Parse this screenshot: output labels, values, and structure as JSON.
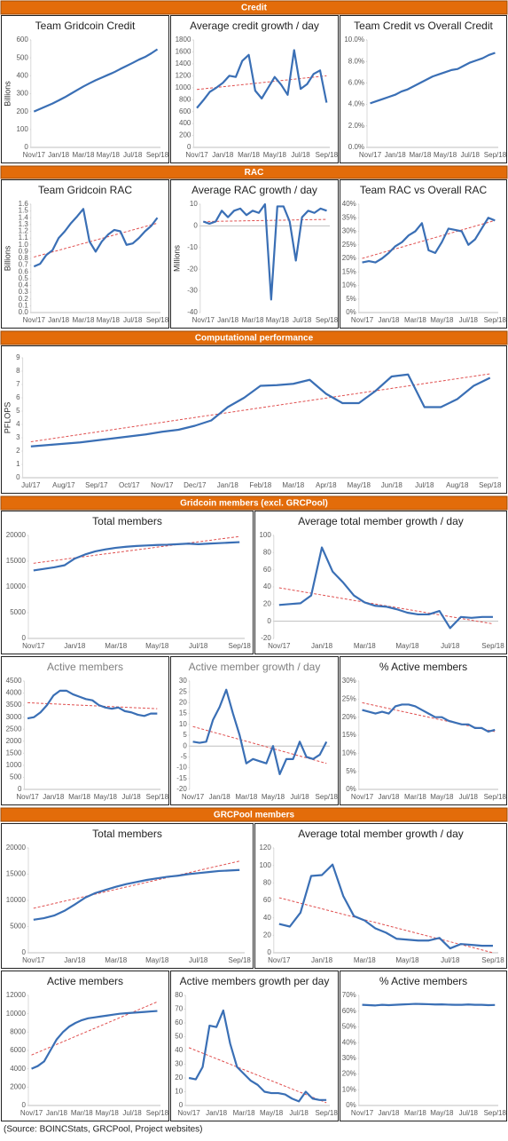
{
  "sections": [
    "Credit",
    "RAC",
    "Computational performance",
    "Gridcoin members (excl. GRCPool)",
    "GRCPool members"
  ],
  "source": "(Source: BOINCStats, GRCPool, Project websites)",
  "chart_data": [
    {
      "type": "line",
      "title": "Team Gridcoin Credit",
      "ylabel": "Billions",
      "color": "#3a6fb5",
      "categories": [
        "Nov/17",
        null,
        null,
        null,
        "Jan/18",
        null,
        null,
        null,
        "Mar/18",
        null,
        null,
        null,
        "May/18",
        null,
        null,
        null,
        "Jul/18",
        null,
        null,
        null,
        "Sep/18"
      ],
      "values": [
        200,
        215,
        230,
        245,
        262,
        280,
        300,
        320,
        340,
        358,
        375,
        390,
        405,
        420,
        438,
        455,
        472,
        490,
        505,
        525,
        548
      ],
      "ylim": [
        0,
        600
      ],
      "yticks": [
        0,
        100,
        200,
        300,
        400,
        500,
        600
      ]
    },
    {
      "type": "line",
      "title": "Average credit growth / day",
      "color": "#3a6fb5",
      "trend_color": "#e05050",
      "categories": [
        "Nov/17",
        null,
        null,
        null,
        "Jan/18",
        null,
        null,
        null,
        "Mar/18",
        null,
        null,
        null,
        "May/18",
        null,
        null,
        null,
        "Jul/18",
        null,
        null,
        null,
        "Sep/18"
      ],
      "values": [
        660,
        790,
        930,
        1000,
        1080,
        1200,
        1180,
        1450,
        1550,
        950,
        820,
        1000,
        1180,
        1050,
        880,
        1630,
        980,
        1060,
        1230,
        1290,
        750
      ],
      "trend": [
        970,
        1200
      ],
      "ylim": [
        0,
        1800
      ],
      "yticks": [
        0,
        200,
        400,
        600,
        800,
        1000,
        1200,
        1400,
        1600,
        1800
      ]
    },
    {
      "type": "line",
      "title": "Team Credit vs Overall Credit",
      "color": "#3a6fb5",
      "categories": [
        "Nov/17",
        null,
        null,
        null,
        "Jan/18",
        null,
        null,
        null,
        "Mar/18",
        null,
        null,
        null,
        "May/18",
        null,
        null,
        null,
        "Jul/18",
        null,
        null,
        null,
        "Sep/18"
      ],
      "values": [
        4.1,
        4.3,
        4.5,
        4.7,
        4.9,
        5.2,
        5.4,
        5.7,
        6.0,
        6.3,
        6.6,
        6.8,
        7.0,
        7.2,
        7.3,
        7.6,
        7.9,
        8.1,
        8.3,
        8.6,
        8.8
      ],
      "ylim": [
        0,
        10
      ],
      "yticks": [
        {
          "value": 0,
          "label": "0.0%"
        },
        {
          "value": 2,
          "label": "2.0%"
        },
        {
          "value": 4,
          "label": "4.0%"
        },
        {
          "value": 6,
          "label": "6.0%"
        },
        {
          "value": 8,
          "label": "8.0%"
        },
        {
          "value": 10,
          "label": "10.0%"
        }
      ]
    },
    {
      "type": "line",
      "title": "Team Gridcoin RAC",
      "ylabel": "Billions",
      "color": "#3a6fb5",
      "trend_color": "#e05050",
      "categories": [
        "Nov/17",
        null,
        null,
        null,
        "Jan/18",
        null,
        null,
        null,
        "Mar/18",
        null,
        null,
        null,
        "May/18",
        null,
        null,
        null,
        "Jul/18",
        null,
        null,
        null,
        "Sep/18"
      ],
      "values": [
        0.68,
        0.72,
        0.85,
        0.92,
        1.1,
        1.2,
        1.32,
        1.42,
        1.53,
        1.05,
        0.9,
        1.05,
        1.15,
        1.22,
        1.2,
        1.0,
        1.02,
        1.1,
        1.2,
        1.28,
        1.4
      ],
      "trend": [
        0.82,
        1.32
      ],
      "ylim": [
        0,
        1.6
      ],
      "yticks": [
        {
          "value": 0,
          "label": "0.0"
        },
        0.1,
        0.2,
        0.3,
        0.4,
        0.5,
        0.6,
        0.7,
        0.8,
        0.9,
        {
          "value": 1,
          "label": "1.0"
        },
        1.1,
        1.2,
        1.3,
        1.4,
        1.5,
        1.6
      ]
    },
    {
      "type": "line",
      "title": "Average RAC growth / day",
      "ylabel": "Millions",
      "color": "#3a6fb5",
      "trend_color": "#e05050",
      "categories": [
        "Nov/17",
        null,
        null,
        null,
        "Jan/18",
        null,
        null,
        null,
        "Mar/18",
        null,
        null,
        null,
        "May/18",
        null,
        null,
        null,
        "Jul/18",
        null,
        null,
        null,
        "Sep/18"
      ],
      "values": [
        2,
        1,
        2,
        7,
        4,
        7,
        8,
        5,
        7,
        6,
        10,
        -34,
        9,
        9,
        2,
        -16,
        4,
        7,
        6,
        8,
        7
      ],
      "trend": [
        2,
        3
      ],
      "ylim": [
        -40,
        10
      ],
      "yticks": [
        -40,
        -30,
        -20,
        -10,
        0,
        10
      ]
    },
    {
      "type": "line",
      "title": "Team RAC vs Overall RAC",
      "color": "#3a6fb5",
      "trend_color": "#e05050",
      "categories": [
        "Nov/17",
        null,
        null,
        null,
        "Jan/18",
        null,
        null,
        null,
        "Mar/18",
        null,
        null,
        null,
        "May/18",
        null,
        null,
        null,
        "Jul/18",
        null,
        null,
        null,
        "Sep/18"
      ],
      "values": [
        18.5,
        19,
        18.5,
        20,
        22,
        24.5,
        26,
        28.5,
        30,
        33,
        23,
        22,
        26,
        31,
        30.5,
        30,
        25,
        27,
        31,
        35,
        34
      ],
      "trend": [
        20,
        34
      ],
      "ylim": [
        0,
        40
      ],
      "yticks": [
        {
          "value": 0,
          "label": "0%"
        },
        {
          "value": 5,
          "label": "5%"
        },
        {
          "value": 10,
          "label": "10%"
        },
        {
          "value": 15,
          "label": "15%"
        },
        {
          "value": 20,
          "label": "20%"
        },
        {
          "value": 25,
          "label": "25%"
        },
        {
          "value": 30,
          "label": "30%"
        },
        {
          "value": 35,
          "label": "35%"
        },
        {
          "value": 40,
          "label": "40%"
        }
      ]
    },
    {
      "type": "line",
      "ylabel": "PFLOPS",
      "color": "#3a6fb5",
      "trend_color": "#e05050",
      "categories": [
        "Jul/17",
        null,
        "Aug/17",
        null,
        "Sep/17",
        null,
        "Oct/17",
        null,
        "Nov/17",
        null,
        "Dec/17",
        null,
        "Jan/18",
        null,
        "Feb/18",
        null,
        "Mar/18",
        null,
        "Apr/18",
        null,
        "May/18",
        null,
        "Jun/18",
        null,
        "Jul/18",
        null,
        "Aug/18",
        null,
        "Sep/18"
      ],
      "values": [
        2.35,
        2.45,
        2.55,
        2.65,
        2.8,
        2.95,
        3.1,
        3.25,
        3.45,
        3.6,
        3.9,
        4.3,
        5.3,
        6.0,
        6.9,
        6.95,
        7.05,
        7.35,
        6.3,
        5.6,
        5.6,
        6.5,
        7.6,
        7.75,
        5.3,
        5.3,
        5.9,
        6.9,
        7.5
      ],
      "trend": [
        2.7,
        7.8
      ],
      "ylim": [
        0,
        9
      ],
      "yticks": [
        0,
        1,
        2,
        3,
        4,
        5,
        6,
        7,
        8,
        9
      ]
    },
    {
      "type": "line",
      "title": "Total members",
      "color": "#3a6fb5",
      "trend_color": "#e05050",
      "categories": [
        "Nov/17",
        null,
        null,
        null,
        "Jan/18",
        null,
        null,
        null,
        "Mar/18",
        null,
        null,
        null,
        "May/18",
        null,
        null,
        null,
        "Jul/18",
        null,
        null,
        null,
        "Sep/18"
      ],
      "values": [
        13200,
        13500,
        13800,
        14200,
        15500,
        16300,
        16900,
        17300,
        17600,
        17800,
        17950,
        18050,
        18150,
        18200,
        18300,
        18400,
        18300,
        18400,
        18500,
        18600,
        18700
      ],
      "trend": [
        14600,
        19800
      ],
      "ylim": [
        0,
        20000
      ],
      "yticks": [
        0,
        5000,
        10000,
        15000,
        20000
      ]
    },
    {
      "type": "line",
      "title": "Average total member growth / day",
      "color": "#3a6fb5",
      "trend_color": "#e05050",
      "categories": [
        "Nov/17",
        null,
        null,
        null,
        "Jan/18",
        null,
        null,
        null,
        "Mar/18",
        null,
        null,
        null,
        "May/18",
        null,
        null,
        null,
        "Jul/18",
        null,
        null,
        null,
        "Sep/18"
      ],
      "values": [
        19,
        20,
        21,
        30,
        86,
        58,
        45,
        30,
        22,
        18,
        17,
        14,
        10,
        8,
        8,
        12,
        -8,
        5,
        4,
        5,
        5
      ],
      "trend": [
        39,
        -3
      ],
      "ylim": [
        -20,
        100
      ],
      "yticks": [
        -20,
        0,
        20,
        40,
        60,
        80,
        100
      ]
    },
    {
      "type": "line",
      "title": "Active members",
      "title_color": "#7f7f7f",
      "color": "#3a6fb5",
      "trend_color": "#e05050",
      "categories": [
        "Nov/17",
        null,
        null,
        null,
        "Jan/18",
        null,
        null,
        null,
        "Mar/18",
        null,
        null,
        null,
        "May/18",
        null,
        null,
        null,
        "Jul/18",
        null,
        null,
        null,
        "Sep/18"
      ],
      "values": [
        2950,
        3000,
        3200,
        3500,
        3900,
        4100,
        4100,
        3950,
        3850,
        3750,
        3700,
        3500,
        3400,
        3350,
        3400,
        3250,
        3200,
        3100,
        3050,
        3150,
        3150
      ],
      "trend": [
        3600,
        3350
      ],
      "ylim": [
        0,
        4500
      ],
      "yticks": [
        0,
        500,
        1000,
        1500,
        2000,
        2500,
        3000,
        3500,
        4000,
        4500
      ]
    },
    {
      "type": "line",
      "title": "Active member growth / day",
      "title_color": "#7f7f7f",
      "color": "#3a6fb5",
      "trend_color": "#e05050",
      "categories": [
        "Nov/17",
        null,
        null,
        null,
        "Jan/18",
        null,
        null,
        null,
        "Mar/18",
        null,
        null,
        null,
        "May/18",
        null,
        null,
        null,
        "Jul/18",
        null,
        null,
        null,
        "Sep/18"
      ],
      "values": [
        2,
        1.5,
        2,
        12,
        18,
        26,
        15,
        5,
        -8,
        -6,
        -7,
        -8,
        0,
        -13,
        -6,
        -6,
        2,
        -5,
        -6,
        -4,
        2
      ],
      "trend": [
        9,
        -8
      ],
      "ylim": [
        -20,
        30
      ],
      "yticks": [
        -20,
        -15,
        -10,
        -5,
        0,
        5,
        10,
        15,
        20,
        25,
        30
      ]
    },
    {
      "type": "line",
      "title": "% Active members",
      "color": "#3a6fb5",
      "trend_color": "#e05050",
      "categories": [
        "Nov/17",
        null,
        null,
        null,
        "Jan/18",
        null,
        null,
        null,
        "Mar/18",
        null,
        null,
        null,
        "May/18",
        null,
        null,
        null,
        "Jul/18",
        null,
        null,
        null,
        "Sep/18"
      ],
      "values": [
        22,
        21.5,
        21,
        21.5,
        21,
        23,
        23.5,
        23.5,
        23,
        22,
        21,
        20,
        20,
        19,
        18.5,
        18,
        18,
        17,
        17,
        16,
        16.5
      ],
      "trend": [
        24,
        16
      ],
      "ylim": [
        0,
        30
      ],
      "yticks": [
        {
          "value": 0,
          "label": "0%"
        },
        {
          "value": 5,
          "label": "5%"
        },
        {
          "value": 10,
          "label": "10%"
        },
        {
          "value": 15,
          "label": "15%"
        },
        {
          "value": 20,
          "label": "20%"
        },
        {
          "value": 25,
          "label": "25%"
        },
        {
          "value": 30,
          "label": "30%"
        }
      ]
    },
    {
      "type": "line",
      "title": "Total members",
      "color": "#3a6fb5",
      "trend_color": "#e05050",
      "categories": [
        "Nov/17",
        null,
        null,
        null,
        "Jan/18",
        null,
        null,
        null,
        "Mar/18",
        null,
        null,
        null,
        "May/18",
        null,
        null,
        null,
        "Jul/18",
        null,
        null,
        null,
        "Sep/18"
      ],
      "values": [
        6300,
        6600,
        7100,
        8000,
        9200,
        10500,
        11400,
        12000,
        12600,
        13100,
        13500,
        13900,
        14200,
        14500,
        14700,
        15000,
        15200,
        15400,
        15600,
        15700,
        15800
      ],
      "trend": [
        8500,
        17500
      ],
      "ylim": [
        0,
        20000
      ],
      "yticks": [
        0,
        5000,
        10000,
        15000,
        20000
      ]
    },
    {
      "type": "line",
      "title": "Average total member growth / day",
      "color": "#3a6fb5",
      "trend_color": "#e05050",
      "categories": [
        "Nov/17",
        null,
        null,
        null,
        "Jan/18",
        null,
        null,
        null,
        "Mar/18",
        null,
        null,
        null,
        "May/18",
        null,
        null,
        null,
        "Jul/18",
        null,
        null,
        null,
        "Sep/18"
      ],
      "values": [
        33,
        30,
        46,
        88,
        89,
        101,
        65,
        42,
        37,
        28,
        23,
        16,
        15,
        14,
        14,
        17,
        5,
        10,
        9,
        8,
        8
      ],
      "trend": [
        63,
        0
      ],
      "ylim": [
        0,
        120
      ],
      "yticks": [
        0,
        20,
        40,
        60,
        80,
        100,
        120
      ]
    },
    {
      "type": "line",
      "title": "Active members",
      "color": "#3a6fb5",
      "trend_color": "#e05050",
      "categories": [
        "Nov/17",
        null,
        null,
        null,
        "Jan/18",
        null,
        null,
        null,
        "Mar/18",
        null,
        null,
        null,
        "May/18",
        null,
        null,
        null,
        "Jul/18",
        null,
        null,
        null,
        "Sep/18"
      ],
      "values": [
        4000,
        4300,
        4800,
        6000,
        7200,
        8000,
        8600,
        9000,
        9300,
        9500,
        9600,
        9700,
        9800,
        9900,
        10000,
        10050,
        10100,
        10150,
        10200,
        10250,
        10300
      ],
      "trend": [
        5500,
        11300
      ],
      "ylim": [
        0,
        12000
      ],
      "yticks": [
        0,
        2000,
        4000,
        6000,
        8000,
        10000,
        12000
      ]
    },
    {
      "type": "line",
      "title": "Active members growth per day",
      "color": "#3a6fb5",
      "trend_color": "#e05050",
      "categories": [
        "Nov/17",
        null,
        null,
        null,
        "Jan/18",
        null,
        null,
        null,
        "Mar/18",
        null,
        null,
        null,
        "May/18",
        null,
        null,
        null,
        "Jul/18",
        null,
        null,
        null,
        "Sep/18"
      ],
      "values": [
        20,
        19,
        28,
        58,
        57,
        69,
        45,
        28,
        23,
        18,
        15,
        10,
        9,
        9,
        8,
        5,
        3,
        10,
        5,
        4,
        4
      ],
      "trend": [
        42,
        2
      ],
      "ylim": [
        0,
        80
      ],
      "yticks": [
        0,
        10,
        20,
        30,
        40,
        50,
        60,
        70,
        80
      ]
    },
    {
      "type": "line",
      "title": "% Active members",
      "color": "#3a6fb5",
      "categories": [
        "Nov/17",
        null,
        null,
        null,
        "Jan/18",
        null,
        null,
        null,
        "Mar/18",
        null,
        null,
        null,
        "May/18",
        null,
        null,
        null,
        "Jul/18",
        null,
        null,
        null,
        "Sep/18"
      ],
      "values": [
        64,
        63.8,
        63.6,
        64,
        63.8,
        64,
        64.2,
        64.4,
        64.6,
        64.5,
        64.4,
        64.2,
        64.3,
        64.1,
        64,
        64,
        64.2,
        64,
        64,
        63.8,
        63.9
      ],
      "ylim": [
        0,
        70
      ],
      "yticks": [
        {
          "value": 0,
          "label": "0%"
        },
        {
          "value": 10,
          "label": "10%"
        },
        {
          "value": 20,
          "label": "20%"
        },
        {
          "value": 30,
          "label": "30%"
        },
        {
          "value": 40,
          "label": "40%"
        },
        {
          "value": 50,
          "label": "50%"
        },
        {
          "value": 60,
          "label": "60%"
        },
        {
          "value": 70,
          "label": "70%"
        }
      ]
    }
  ]
}
